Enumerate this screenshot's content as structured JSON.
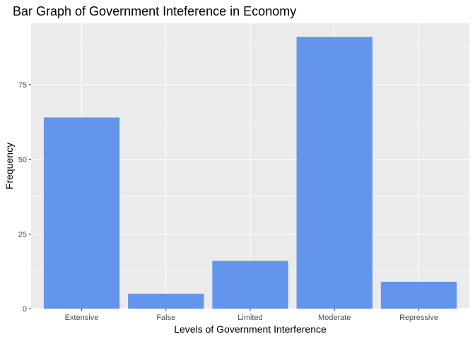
{
  "chart_data": {
    "type": "bar",
    "title": "Bar Graph of Government Inteference in Economy",
    "xlabel": "Levels of Government Interference",
    "ylabel": "Frequency",
    "categories": [
      "Extensive",
      "False",
      "Limited",
      "Moderate",
      "Repressive"
    ],
    "values": [
      64,
      5,
      16,
      91,
      9
    ],
    "ylim": [
      0,
      95.55
    ],
    "yticks": [
      0,
      25,
      50,
      75
    ],
    "ytick_labels": [
      "0",
      "25",
      "50",
      "75"
    ],
    "grid": true,
    "legend": "none",
    "colors": {
      "bar": "#6495ed",
      "panel": "#ebebeb",
      "grid_major": "#ffffff",
      "tick_text": "#4d4d4d"
    }
  }
}
